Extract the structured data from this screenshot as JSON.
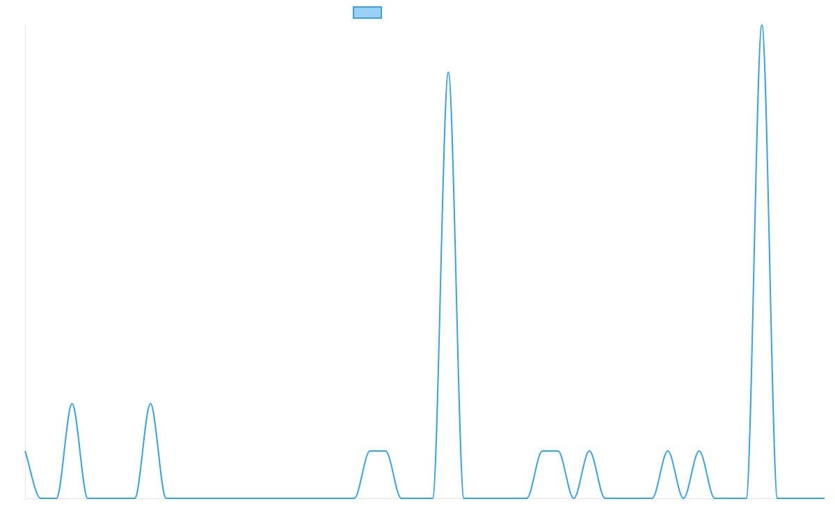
{
  "chart_data": {
    "type": "line",
    "title": "",
    "xlabel": "",
    "ylabel": "",
    "legend": {
      "position": "top",
      "label": ""
    },
    "interpolation": "monotone",
    "grid": false,
    "ylim": [
      0,
      10
    ],
    "colors": {
      "line": "#36a2eb",
      "legend_fill": "#9ad0f5",
      "axis": "#e5e5e5"
    },
    "series": [
      {
        "values": [
          1,
          0,
          0,
          2,
          0,
          0,
          0,
          0,
          2,
          0,
          0,
          0,
          0,
          0,
          0,
          0,
          0,
          0,
          0,
          0,
          0,
          0,
          1,
          1,
          0,
          0,
          0,
          9,
          0,
          0,
          0,
          0,
          0,
          1,
          1,
          0,
          1,
          0,
          0,
          0,
          0,
          1,
          0,
          1,
          0,
          0,
          0,
          10,
          0,
          0,
          0,
          0
        ]
      }
    ]
  }
}
